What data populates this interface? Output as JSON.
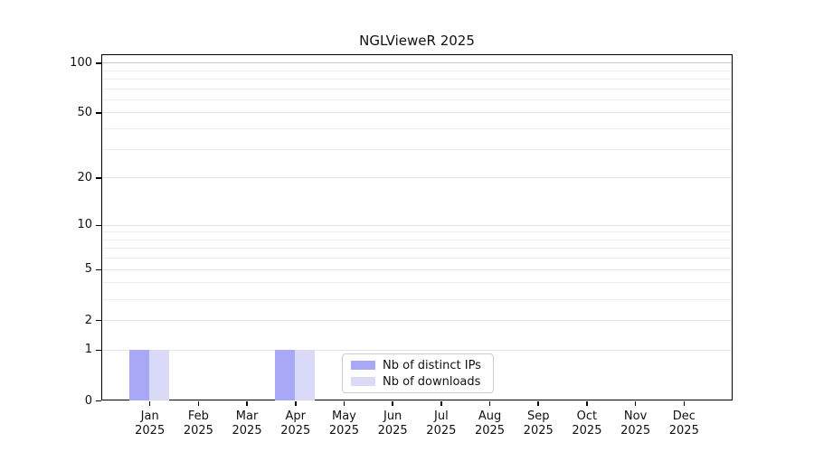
{
  "chart_data": {
    "type": "bar",
    "title": "NGLVieweR 2025",
    "year_label": "2025",
    "months": [
      "Jan",
      "Feb",
      "Mar",
      "Apr",
      "May",
      "Jun",
      "Jul",
      "Aug",
      "Sep",
      "Oct",
      "Nov",
      "Dec"
    ],
    "series": [
      {
        "name": "Nb of distinct IPs",
        "color": "#a8a8f6",
        "values": [
          1,
          0,
          0,
          1,
          0,
          0,
          0,
          0,
          0,
          0,
          0,
          0
        ]
      },
      {
        "name": "Nb of downloads",
        "color": "#d9d9f8",
        "values": [
          1,
          0,
          0,
          1,
          0,
          0,
          0,
          0,
          0,
          0,
          0,
          0
        ]
      }
    ],
    "y_axis": {
      "scale": "log1p",
      "ticks": [
        0,
        1,
        2,
        5,
        10,
        20,
        50,
        100
      ],
      "minor_gridlines": [
        3,
        4,
        6,
        7,
        8,
        9,
        30,
        40,
        60,
        70,
        80,
        90
      ],
      "ylim": [
        0,
        113
      ]
    },
    "xlabel": "",
    "ylabel": "",
    "grid": "horizontal",
    "legend_position": "lower center"
  },
  "colors": {
    "spine": "#000000",
    "grid_minor": "#ededed",
    "grid_major": "#e3e3e3",
    "grid_top": "#c8c8c8",
    "legend_border": "#cccccc"
  }
}
